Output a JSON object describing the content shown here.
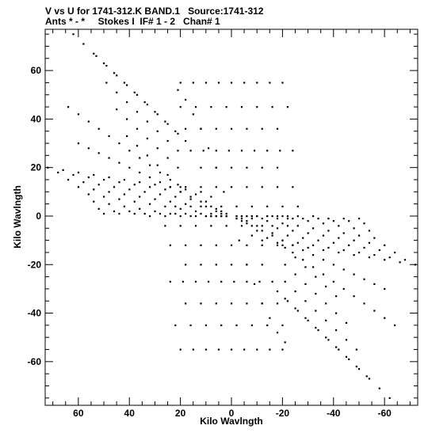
{
  "header": {
    "title": "V vs U for 1741-312.K BAND.1   Source:1741-312",
    "subtitle": "Ants * - *     Stokes I  IF# 1 - 2   Chan# 1"
  },
  "chart_data": {
    "type": "scatter",
    "xlabel": "Kilo Wavlngth",
    "ylabel": "Kilo Wavlngth",
    "xlim": [
      73,
      -73
    ],
    "ylim": [
      -78,
      77
    ],
    "x_ticks": [
      60,
      40,
      20,
      0,
      -20,
      -40,
      -60
    ],
    "y_ticks": [
      60,
      40,
      20,
      0,
      -20,
      -40,
      -60
    ],
    "tick_labels_x": [
      "60",
      "40",
      "20",
      "0",
      "-20",
      "-40",
      "-60"
    ],
    "tick_labels_y": [
      "60",
      "40",
      "20",
      "0",
      "-20",
      "-40",
      "-60"
    ],
    "grid": false,
    "marker_color": "#000000",
    "series": [
      {
        "description_points": "uv-coverage",
        "x": [
          62,
          58,
          54,
          50,
          46,
          42,
          38,
          34,
          30,
          26,
          22,
          18,
          53,
          49,
          45,
          41,
          37,
          33,
          29,
          25,
          21,
          49,
          45,
          41,
          37,
          33,
          29,
          25,
          21,
          45,
          41,
          37,
          33,
          29,
          25,
          21,
          41,
          37,
          33,
          29,
          25,
          21,
          20,
          15,
          10,
          5,
          0,
          -5,
          -10,
          -15,
          -20,
          20,
          14,
          8,
          2,
          -4,
          -10,
          -16,
          -22,
          18,
          12,
          6,
          0,
          -6,
          -12,
          -18,
          16,
          11,
          6,
          1,
          -4,
          -9,
          -14,
          -19,
          -24,
          12,
          6,
          0,
          -6,
          -12,
          -18,
          24,
          18,
          12,
          6,
          0,
          -6,
          -12,
          -18,
          -24,
          22,
          16,
          10,
          4,
          -2,
          -8,
          -14,
          -20,
          -26,
          72,
          66,
          60,
          54,
          48,
          42,
          36,
          30,
          24,
          18,
          12,
          68,
          62,
          56,
          50,
          44,
          38,
          32,
          26,
          20,
          14,
          8,
          64,
          58,
          52,
          46,
          40,
          34,
          28,
          22,
          16,
          10,
          60,
          54,
          48,
          42,
          36,
          30,
          24,
          18,
          12,
          6,
          56,
          50,
          44,
          38,
          32,
          26,
          20,
          14,
          8,
          54,
          48,
          42,
          36,
          30,
          24,
          18,
          12,
          6,
          52,
          46,
          40,
          34,
          28,
          22,
          16,
          10,
          4,
          50,
          44,
          38,
          32,
          26,
          20,
          14,
          8,
          2,
          -72,
          -66,
          -60,
          -54,
          -48,
          -42,
          -36,
          -30,
          -24,
          -18,
          -12,
          -68,
          -62,
          -56,
          -50,
          -44,
          -38,
          -32,
          -26,
          -20,
          -14,
          -8,
          -64,
          -58,
          -52,
          -46,
          -40,
          -34,
          -28,
          -22,
          -16,
          -10,
          -60,
          -54,
          -48,
          -42,
          -36,
          -30,
          -24,
          -18,
          -12,
          -6,
          -56,
          -50,
          -44,
          -38,
          -32,
          -26,
          -20,
          -14,
          -8,
          -54,
          -48,
          -42,
          -36,
          -30,
          -24,
          -18,
          -12,
          -6,
          -52,
          -46,
          -40,
          -34,
          -28,
          -22,
          -16,
          -10,
          -4,
          -50,
          -44,
          -38,
          -32,
          -26,
          -20,
          -14,
          -8,
          -2,
          10,
          8,
          6,
          4,
          2,
          -2,
          -4,
          -6,
          -8,
          -10,
          -14,
          -18,
          -22,
          6,
          4,
          2,
          -2,
          -4,
          -6,
          -62,
          -58,
          -54,
          -50,
          -46,
          -42,
          -38,
          -34,
          -30,
          -26,
          -22,
          -18,
          -53,
          -49,
          -45,
          -41,
          -37,
          -33,
          -29,
          -25,
          -21,
          -49,
          -45,
          -41,
          -37,
          -33,
          -29,
          -25,
          -21,
          -45,
          -41,
          -37,
          -33,
          -29,
          -25,
          -21,
          -41,
          -37,
          -33,
          -29,
          -25,
          -21,
          -20,
          -15,
          -10,
          -5,
          0,
          5,
          10,
          15,
          20,
          -20,
          -14,
          -8,
          -2,
          4,
          10,
          16,
          22,
          -18,
          -12,
          -6,
          0,
          6,
          12,
          18,
          -16,
          -11,
          -6,
          -1,
          4,
          9,
          14,
          19,
          24,
          -12,
          -6,
          0,
          6,
          12,
          18,
          -24,
          -18,
          -12,
          -6,
          0,
          6,
          12,
          18,
          24,
          -22,
          -16,
          -10,
          -4,
          2,
          8,
          14,
          20,
          26,
          64,
          60,
          56,
          52,
          48,
          44,
          40,
          36,
          32,
          28,
          24,
          20,
          -64,
          -60,
          -56,
          -52,
          -48,
          -44,
          -40,
          -36,
          -32,
          -28,
          -24,
          -20,
          60,
          56,
          52,
          48,
          44,
          40,
          36,
          32,
          28,
          24,
          20,
          16,
          12,
          8,
          4,
          -60,
          -56,
          -52,
          -48,
          -44,
          -40,
          -36,
          -32,
          -28,
          -24,
          -20,
          -16,
          -12,
          -8,
          -4,
          21,
          18,
          15,
          12,
          9,
          6,
          3,
          -21,
          -18,
          -15,
          -12,
          -9,
          -6,
          -3
        ],
        "y": [
          75,
          71,
          67,
          63,
          59,
          55,
          51,
          47,
          43,
          39,
          35,
          31,
          66,
          62,
          58,
          54,
          50,
          46,
          42,
          38,
          34,
          55,
          51,
          47,
          43,
          39,
          35,
          31,
          27,
          44,
          40,
          36,
          32,
          28,
          24,
          20,
          33,
          29,
          25,
          21,
          17,
          13,
          55,
          55,
          55,
          55,
          55,
          55,
          55,
          55,
          55,
          45,
          45,
          45,
          45,
          45,
          45,
          45,
          45,
          36,
          36,
          36,
          36,
          36,
          36,
          36,
          27,
          27,
          27,
          27,
          27,
          27,
          27,
          27,
          27,
          20,
          20,
          20,
          20,
          20,
          20,
          12,
          12,
          12,
          12,
          12,
          12,
          12,
          12,
          12,
          4,
          4,
          4,
          4,
          4,
          4,
          4,
          4,
          4,
          20,
          19,
          18,
          17,
          16,
          15,
          14,
          13,
          12,
          11,
          10,
          18,
          17,
          16,
          15,
          14,
          13,
          12,
          11,
          10,
          9,
          8,
          15,
          14,
          13,
          12,
          11,
          10,
          9,
          8,
          7,
          6,
          12,
          11,
          10,
          9,
          8,
          7,
          6,
          5,
          4,
          3,
          9,
          8,
          7,
          6,
          5,
          4,
          3,
          2,
          1,
          6,
          5,
          4,
          3,
          2,
          1,
          1,
          1,
          0,
          3,
          2,
          2,
          1,
          1,
          1,
          0,
          0,
          0,
          1,
          1,
          1,
          0,
          0,
          0,
          0,
          0,
          0,
          -20,
          -19,
          -18,
          -17,
          -16,
          -15,
          -14,
          -13,
          -12,
          -11,
          -10,
          -18,
          -17,
          -16,
          -15,
          -14,
          -13,
          -12,
          -11,
          -10,
          -9,
          -8,
          -15,
          -14,
          -13,
          -12,
          -11,
          -10,
          -9,
          -8,
          -7,
          -6,
          -12,
          -11,
          -10,
          -9,
          -8,
          -7,
          -6,
          -5,
          -4,
          -3,
          -9,
          -8,
          -7,
          -6,
          -5,
          -4,
          -3,
          -2,
          -1,
          -6,
          -5,
          -4,
          -3,
          -2,
          -1,
          -1,
          -1,
          0,
          -3,
          -2,
          -2,
          -1,
          -1,
          -1,
          0,
          0,
          0,
          -1,
          -1,
          -1,
          0,
          0,
          0,
          0,
          0,
          0,
          0,
          0,
          0,
          0,
          0,
          0,
          0,
          0,
          0,
          0,
          0,
          0,
          0,
          2,
          1,
          1,
          -1,
          -1,
          -2,
          -75,
          -71,
          -67,
          -63,
          -59,
          -55,
          -51,
          -47,
          -43,
          -39,
          -35,
          -31,
          -66,
          -62,
          -58,
          -54,
          -50,
          -46,
          -42,
          -38,
          -34,
          -55,
          -51,
          -47,
          -43,
          -39,
          -35,
          -31,
          -27,
          -44,
          -40,
          -36,
          -32,
          -28,
          -24,
          -20,
          -33,
          -29,
          -25,
          -21,
          -17,
          -13,
          -55,
          -55,
          -55,
          -55,
          -55,
          -55,
          -55,
          -55,
          -55,
          -45,
          -45,
          -45,
          -45,
          -45,
          -45,
          -45,
          -45,
          -36,
          -36,
          -36,
          -36,
          -36,
          -36,
          -36,
          -27,
          -27,
          -27,
          -27,
          -27,
          -27,
          -27,
          -27,
          -27,
          -20,
          -20,
          -20,
          -20,
          -20,
          -20,
          -12,
          -12,
          -12,
          -12,
          -12,
          -12,
          -12,
          -12,
          -12,
          -4,
          -4,
          -4,
          -4,
          -4,
          -4,
          -4,
          -4,
          -4,
          45,
          42,
          39,
          36,
          33,
          30,
          27,
          24,
          21,
          18,
          15,
          12,
          -45,
          -42,
          -39,
          -36,
          -33,
          -30,
          -27,
          -24,
          -21,
          -18,
          -15,
          -12,
          30,
          28,
          26,
          24,
          22,
          20,
          18,
          16,
          14,
          12,
          10,
          8,
          6,
          4,
          2,
          -30,
          -28,
          -26,
          -24,
          -22,
          -20,
          -18,
          -16,
          -14,
          -12,
          -10,
          -8,
          -6,
          -4,
          -2,
          52,
          48,
          42,
          36,
          28,
          20,
          10,
          -52,
          -48,
          -42,
          -36,
          -28,
          -20,
          -10
        ]
      }
    ]
  }
}
